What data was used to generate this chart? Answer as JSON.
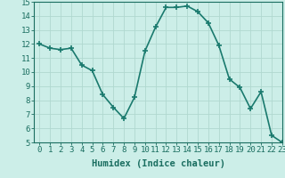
{
  "x": [
    0,
    1,
    2,
    3,
    4,
    5,
    6,
    7,
    8,
    9,
    10,
    11,
    12,
    13,
    14,
    15,
    16,
    17,
    18,
    19,
    20,
    21,
    22,
    23
  ],
  "y": [
    12.0,
    11.7,
    11.6,
    11.7,
    10.5,
    10.1,
    8.4,
    7.5,
    6.7,
    8.2,
    11.5,
    13.2,
    14.6,
    14.6,
    14.7,
    14.3,
    13.5,
    11.9,
    9.5,
    8.9,
    7.4,
    8.6,
    5.5,
    5.0
  ],
  "line_color": "#1a7a6e",
  "marker": "+",
  "marker_size": 4,
  "bg_color": "#cceee8",
  "grid_color": "#b0d8d0",
  "xlabel": "Humidex (Indice chaleur)",
  "ylim": [
    5,
    15
  ],
  "xlim": [
    -0.5,
    23
  ],
  "yticks": [
    5,
    6,
    7,
    8,
    9,
    10,
    11,
    12,
    13,
    14,
    15
  ],
  "xticks": [
    0,
    1,
    2,
    3,
    4,
    5,
    6,
    7,
    8,
    9,
    10,
    11,
    12,
    13,
    14,
    15,
    16,
    17,
    18,
    19,
    20,
    21,
    22,
    23
  ],
  "tick_label_color": "#1a6e60",
  "axis_color": "#1a6e60",
  "label_fontsize": 7.5,
  "tick_fontsize": 6.5,
  "line_width": 1.2,
  "markeredgewidth": 1.2
}
